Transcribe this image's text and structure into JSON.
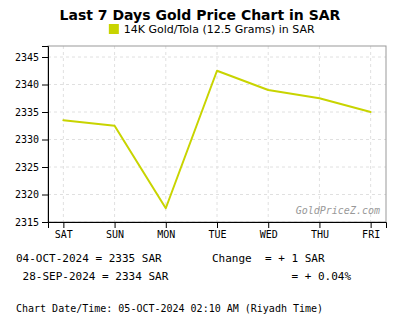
{
  "chart_data": {
    "type": "line",
    "title": "Last 7 Days Gold Price Chart in SAR",
    "categories": [
      "SAT",
      "SUN",
      "MON",
      "TUE",
      "WED",
      "THU",
      "FRI"
    ],
    "series": [
      {
        "name": "14K Gold/Tola (12.5 Grams) in SAR",
        "color": "#c8d400",
        "values": [
          2333.5,
          2332.5,
          2317.5,
          2342.5,
          2339.0,
          2337.5,
          2335.0
        ]
      }
    ],
    "ylim": [
      2315,
      2347
    ],
    "yticks": [
      2315,
      2320,
      2325,
      2330,
      2335,
      2340,
      2345
    ],
    "grid": true,
    "legend": "top",
    "annotations": [
      "GoldPriceZ.com",
      "04-OCT-2024 = 2335 SAR",
      "Change  = + 1 SAR",
      " 28-SEP-2024 = 2334 SAR",
      "            = + 0.04%",
      "Chart Date/Time: 05-OCT-2024 02:10 AM (Riyadh Time)"
    ]
  }
}
